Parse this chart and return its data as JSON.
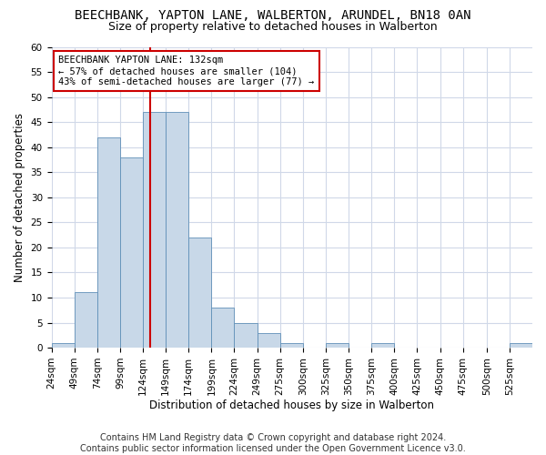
{
  "title1": "BEECHBANK, YAPTON LANE, WALBERTON, ARUNDEL, BN18 0AN",
  "title2": "Size of property relative to detached houses in Walberton",
  "xlabel": "Distribution of detached houses by size in Walberton",
  "ylabel": "Number of detached properties",
  "footnote1": "Contains HM Land Registry data © Crown copyright and database right 2024.",
  "footnote2": "Contains public sector information licensed under the Open Government Licence v3.0.",
  "annotation_line1": "BEECHBANK YAPTON LANE: 132sqm",
  "annotation_line2": "← 57% of detached houses are smaller (104)",
  "annotation_line3": "43% of semi-detached houses are larger (77) →",
  "bar_color": "#c8d8e8",
  "bar_edge_color": "#6090b8",
  "grid_color": "#d0d8e8",
  "vline_color": "#cc0000",
  "vline_x": 132,
  "bin_edges": [
    24,
    49,
    74,
    99,
    124,
    149,
    174,
    199,
    224,
    249,
    274,
    299,
    324,
    349,
    374,
    399,
    424,
    449,
    474,
    500,
    525,
    550
  ],
  "bar_heights": [
    1,
    11,
    42,
    38,
    47,
    47,
    22,
    8,
    5,
    3,
    1,
    0,
    1,
    0,
    1,
    0,
    0,
    0,
    0,
    0,
    1
  ],
  "xlim": [
    24,
    550
  ],
  "ylim": [
    0,
    60
  ],
  "yticks": [
    0,
    5,
    10,
    15,
    20,
    25,
    30,
    35,
    40,
    45,
    50,
    55,
    60
  ],
  "xtick_labels": [
    "24sqm",
    "49sqm",
    "74sqm",
    "99sqm",
    "124sqm",
    "149sqm",
    "174sqm",
    "199sqm",
    "224sqm",
    "249sqm",
    "275sqm",
    "300sqm",
    "325sqm",
    "350sqm",
    "375sqm",
    "400sqm",
    "425sqm",
    "450sqm",
    "475sqm",
    "500sqm",
    "525sqm"
  ],
  "annotation_box_color": "white",
  "annotation_box_edge": "#cc0000",
  "title1_fontsize": 10,
  "title2_fontsize": 9,
  "axis_label_fontsize": 8.5,
  "tick_fontsize": 7.5,
  "annotation_fontsize": 7.5,
  "footnote_fontsize": 7
}
